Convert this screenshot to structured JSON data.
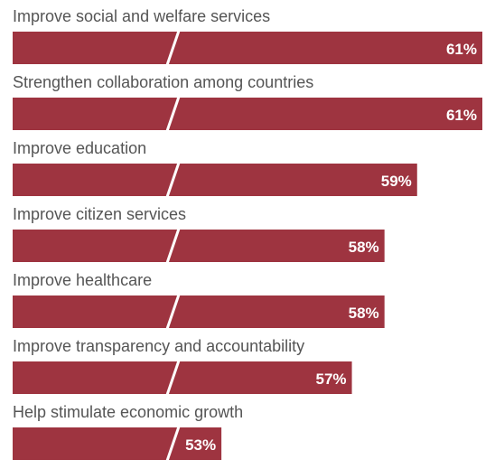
{
  "chart_data": {
    "type": "bar",
    "orientation": "horizontal",
    "axis_break": true,
    "categories": [
      "Improve social and welfare services",
      "Strengthen collaboration among countries",
      "Improve education",
      "Improve citizen services",
      "Improve healthcare",
      "Improve transparency and accountability",
      "Help stimulate economic growth"
    ],
    "values": [
      61,
      61,
      59,
      58,
      58,
      57,
      53
    ],
    "value_labels": [
      "61%",
      "61%",
      "59%",
      "58%",
      "58%",
      "57%",
      "53%"
    ],
    "unit": "%",
    "title": "",
    "xlabel": "",
    "ylabel": "",
    "grid": false,
    "legend": "none",
    "colors": {
      "bar": "#9e3440",
      "break_line": "#ffffff",
      "label": "#555555",
      "value_label": "#ffffff"
    }
  }
}
